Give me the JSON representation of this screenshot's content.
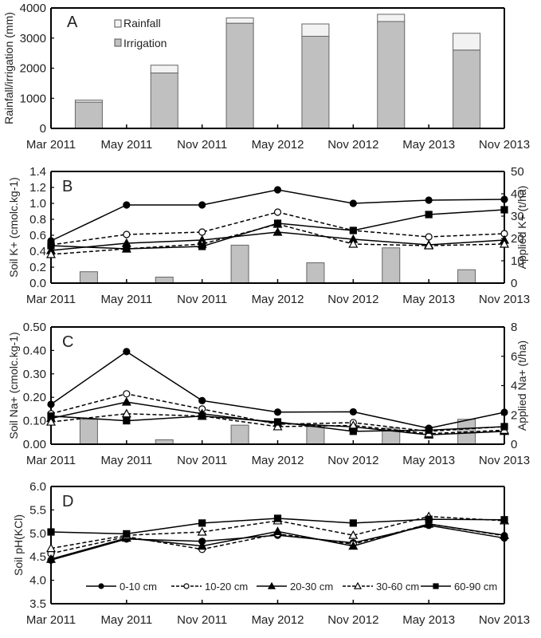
{
  "x_categories": [
    "Mar 2011",
    "May 2011",
    "Nov 2011",
    "May 2012",
    "Nov 2012",
    "May 2013",
    "Nov 2013"
  ],
  "depth_legend": [
    "0-10 cm",
    "10-20 cm",
    "20-30 cm",
    "30-60 cm",
    "60-90 cm"
  ],
  "chart_data": [
    {
      "panel": "A",
      "type": "bar",
      "stacked": true,
      "categories": [
        "Mar 2011",
        "May 2011",
        "Nov 2011",
        "May 2012",
        "Nov 2012",
        "May 2013",
        "Nov 2013"
      ],
      "bar_positions": [
        "Apr 2011",
        "Aug 2011",
        "Feb 2012",
        "Aug 2012",
        "Feb 2013",
        "Aug 2013"
      ],
      "series": [
        {
          "name": "Irrigation",
          "values": [
            870,
            1840,
            3490,
            3060,
            3550,
            2600
          ],
          "color": "#c0c0c0"
        },
        {
          "name": "Rainfall",
          "values": [
            70,
            260,
            180,
            410,
            240,
            560
          ],
          "color": "#f2f2f2"
        }
      ],
      "ylabel": "Rainfall/irrigation (mm)",
      "ylim": [
        0,
        4000
      ],
      "yticks": [
        0,
        1000,
        2000,
        3000,
        4000
      ],
      "legend": "top-left",
      "grid": false
    },
    {
      "panel": "B",
      "type": "line",
      "categories": [
        "Mar 2011",
        "May 2011",
        "Nov 2011",
        "May 2012",
        "Nov 2012",
        "May 2013",
        "Nov 2013"
      ],
      "ylabel": "Soil K+ (cmolc.kg-1)",
      "ylim": [
        0,
        1.4
      ],
      "yticks": [
        "0.0",
        "0.2",
        "0.4",
        "0.6",
        "0.8",
        "1.0",
        "1.2",
        "1.4"
      ],
      "y2label": "Applied K+ (t/ha)",
      "y2lim": [
        0,
        50
      ],
      "y2ticks": [
        0,
        10,
        20,
        30,
        40,
        50
      ],
      "series": [
        {
          "name": "0-10 cm",
          "values": [
            0.53,
            0.98,
            0.98,
            1.17,
            1.0,
            1.04,
            1.05
          ]
        },
        {
          "name": "10-20 cm",
          "values": [
            0.48,
            0.61,
            0.64,
            0.89,
            0.66,
            0.58,
            0.62
          ]
        },
        {
          "name": "20-30 cm",
          "values": [
            0.41,
            0.5,
            0.54,
            0.64,
            0.55,
            0.48,
            0.54
          ]
        },
        {
          "name": "30-60 cm",
          "values": [
            0.36,
            0.43,
            0.49,
            0.74,
            0.49,
            0.47,
            0.49
          ]
        },
        {
          "name": "60-90 cm",
          "values": [
            0.47,
            0.43,
            0.46,
            0.75,
            0.66,
            0.86,
            0.92
          ]
        }
      ],
      "bars": {
        "name": "Applied K+",
        "values": [
          5.1,
          2.7,
          17.0,
          9.1,
          15.8,
          6.0
        ]
      },
      "grid": false
    },
    {
      "panel": "C",
      "type": "line",
      "categories": [
        "Mar 2011",
        "May 2011",
        "Nov 2011",
        "May 2012",
        "Nov 2012",
        "May 2013",
        "Nov 2013"
      ],
      "ylabel": "Soil Na+ (cmolc.kg-1)",
      "ylim": [
        0,
        0.5
      ],
      "yticks": [
        "0.00",
        "0.10",
        "0.20",
        "0.30",
        "0.40",
        "0.50"
      ],
      "y2label": "Applied Na+ (t/ha)",
      "y2lim": [
        0,
        8
      ],
      "y2ticks": [
        0,
        2,
        4,
        6,
        8
      ],
      "series": [
        {
          "name": "0-10 cm",
          "values": [
            0.17,
            0.395,
            0.186,
            0.137,
            0.138,
            0.068,
            0.136
          ]
        },
        {
          "name": "10-20 cm",
          "values": [
            0.13,
            0.215,
            0.15,
            0.085,
            0.092,
            0.055,
            0.075
          ]
        },
        {
          "name": "20-30 cm",
          "values": [
            0.11,
            0.18,
            0.13,
            0.09,
            0.074,
            0.04,
            0.055
          ]
        },
        {
          "name": "30-60 cm",
          "values": [
            0.095,
            0.13,
            0.12,
            0.075,
            0.08,
            0.045,
            0.06
          ]
        },
        {
          "name": "60-90 cm",
          "values": [
            0.12,
            0.1,
            0.12,
            0.095,
            0.055,
            0.06,
            0.075
          ]
        }
      ],
      "bars": {
        "name": "Applied Na+",
        "values": [
          1.7,
          0.3,
          1.3,
          1.2,
          1.1,
          1.7
        ]
      },
      "grid": false
    },
    {
      "panel": "D",
      "type": "line",
      "categories": [
        "Mar 2011",
        "May 2011",
        "Nov 2011",
        "May 2012",
        "Nov 2012",
        "May 2013",
        "Nov 2013"
      ],
      "ylabel": "Soil pH(KCl)",
      "ylim": [
        3.5,
        6.0
      ],
      "yticks": [
        "3.5",
        "4.0",
        "4.5",
        "5.0",
        "5.5",
        "6.0"
      ],
      "series": [
        {
          "name": "0-10 cm",
          "values": [
            4.43,
            4.88,
            4.83,
            4.96,
            4.8,
            5.17,
            4.9
          ]
        },
        {
          "name": "10-20 cm",
          "values": [
            4.57,
            4.93,
            4.66,
            4.99,
            4.77,
            5.2,
            4.95
          ]
        },
        {
          "name": "20-30 cm",
          "values": [
            4.45,
            4.9,
            4.73,
            5.04,
            4.73,
            5.2,
            4.96
          ]
        },
        {
          "name": "30-60 cm",
          "values": [
            4.68,
            4.96,
            5.03,
            5.27,
            4.96,
            5.36,
            5.27
          ]
        },
        {
          "name": "60-90 cm",
          "values": [
            5.03,
            4.99,
            5.22,
            5.32,
            5.22,
            5.3,
            5.29
          ]
        }
      ],
      "legend": "bottom",
      "grid": false
    }
  ],
  "panel_letters": [
    "A",
    "B",
    "C",
    "D"
  ],
  "legend_A": [
    "Rainfall",
    "Irrigation"
  ]
}
